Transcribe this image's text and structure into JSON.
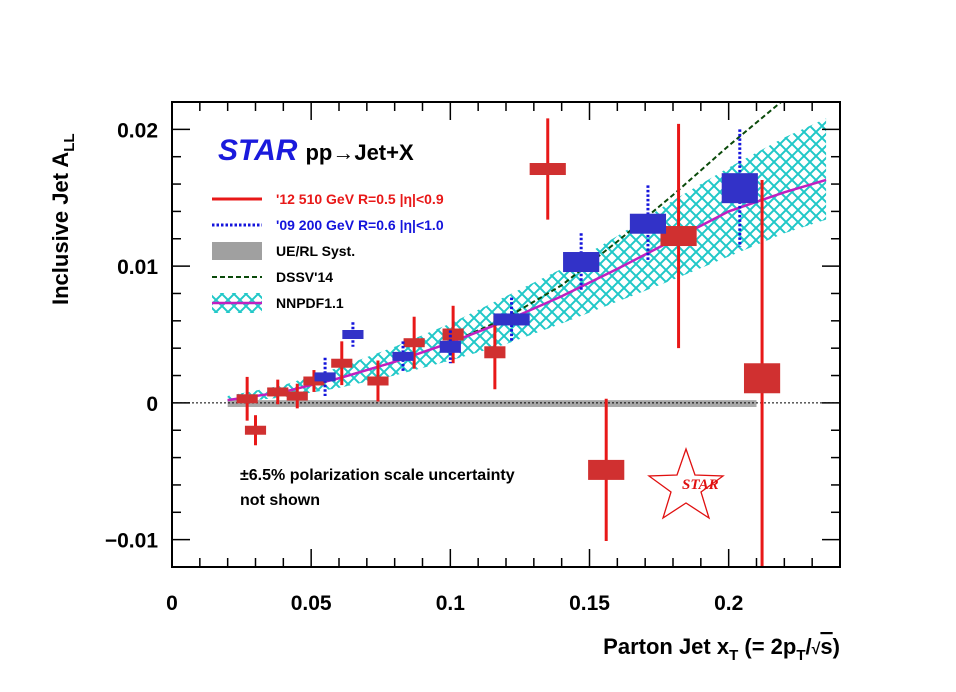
{
  "chart_data": {
    "type": "scatter",
    "title_star": "STAR",
    "title_process": "pp→Jet+X",
    "xlabel": "Parton Jet x",
    "xlabel_sub": "T",
    "xlabel_expr_open": " (= 2p",
    "xlabel_expr_sub": "T",
    "xlabel_expr_slash": "/",
    "xlabel_expr_root": "√",
    "xlabel_expr_s": "s",
    "xlabel_expr_close": ")",
    "ylabel": "Inclusive Jet A",
    "ylabel_sub": "LL",
    "xlim": [
      0,
      0.24
    ],
    "ylim": [
      -0.012,
      0.022
    ],
    "x_ticks": [
      {
        "value": 0,
        "label": "0"
      },
      {
        "value": 0.05,
        "label": "0.05"
      },
      {
        "value": 0.1,
        "label": "0.1"
      },
      {
        "value": 0.15,
        "label": "0.15"
      },
      {
        "value": 0.2,
        "label": "0.2"
      }
    ],
    "y_ticks": [
      {
        "value": -0.01,
        "label": "−0.01"
      },
      {
        "value": 0,
        "label": "0"
      },
      {
        "value": 0.01,
        "label": "0.01"
      },
      {
        "value": 0.02,
        "label": "0.02"
      }
    ],
    "legend": [
      {
        "label": "'12 510 GeV R=0.5  |η|<0.9",
        "color": "#e81818",
        "style": "solid"
      },
      {
        "label": "'09 200 GeV R=0.6  |η|<1.0",
        "color": "#1414dc",
        "style": "dotted"
      },
      {
        "label": "UE/RL Syst.",
        "color": "#a0a0a0",
        "style": "box"
      },
      {
        "label": "DSSV'14",
        "color": "#0a4a0a",
        "style": "dashed"
      },
      {
        "label": "NNPDF1.1",
        "color": "#c020c0",
        "style": "band"
      }
    ],
    "series": [
      {
        "name": "'12 510 GeV R=0.5  |η|<0.9",
        "color": "#e81818",
        "box_color": "#d03030",
        "points": [
          {
            "x": 0.027,
            "y": 0.0003,
            "err": 0.0016
          },
          {
            "x": 0.03,
            "y": -0.002,
            "err": 0.0011
          },
          {
            "x": 0.038,
            "y": 0.0008,
            "err": 0.0009
          },
          {
            "x": 0.045,
            "y": 0.0005,
            "err": 0.0009
          },
          {
            "x": 0.051,
            "y": 0.0016,
            "err": 0.0008
          },
          {
            "x": 0.061,
            "y": 0.0029,
            "err": 0.0016
          },
          {
            "x": 0.074,
            "y": 0.0016,
            "err": 0.0015
          },
          {
            "x": 0.087,
            "y": 0.0044,
            "err": 0.0019
          },
          {
            "x": 0.101,
            "y": 0.005,
            "err": 0.0021
          },
          {
            "x": 0.116,
            "y": 0.0037,
            "err": 0.0027
          },
          {
            "x": 0.135,
            "y": 0.0171,
            "err": 0.0037
          },
          {
            "x": 0.156,
            "y": -0.0049,
            "err": 0.0052
          },
          {
            "x": 0.182,
            "y": 0.0122,
            "err": 0.0082
          },
          {
            "x": 0.212,
            "y": 0.0018,
            "err": 0.0145
          }
        ]
      },
      {
        "name": "'09 200 GeV R=0.6  |η|<1.0",
        "color": "#1414dc",
        "box_color": "#3232c8",
        "points": [
          {
            "x": 0.055,
            "y": 0.0019,
            "err": 0.0014
          },
          {
            "x": 0.065,
            "y": 0.005,
            "err": 0.0009
          },
          {
            "x": 0.083,
            "y": 0.0034,
            "err": 0.0011
          },
          {
            "x": 0.1,
            "y": 0.0041,
            "err": 0.0012
          },
          {
            "x": 0.122,
            "y": 0.0061,
            "err": 0.0016
          },
          {
            "x": 0.147,
            "y": 0.0103,
            "err": 0.0021
          },
          {
            "x": 0.171,
            "y": 0.0131,
            "err": 0.0028
          },
          {
            "x": 0.204,
            "y": 0.0157,
            "err": 0.0043
          }
        ]
      }
    ],
    "ue_rl_syst": {
      "x_start": 0.02,
      "x_end": 0.21,
      "y_low": -0.0003,
      "y_high": 0.0002
    },
    "dssv14": {
      "x": [
        0.02,
        0.04,
        0.06,
        0.08,
        0.1,
        0.12,
        0.14,
        0.16,
        0.18,
        0.2,
        0.22,
        0.23
      ],
      "y": [
        0.0002,
        0.0008,
        0.0018,
        0.003,
        0.0044,
        0.0062,
        0.0086,
        0.0118,
        0.0152,
        0.0188,
        0.0222,
        0.024
      ]
    },
    "nnpdf11": {
      "x": [
        0.02,
        0.04,
        0.06,
        0.08,
        0.1,
        0.12,
        0.14,
        0.16,
        0.18,
        0.2,
        0.22,
        0.235
      ],
      "y": [
        0.0002,
        0.0008,
        0.0018,
        0.003,
        0.0044,
        0.006,
        0.0078,
        0.0098,
        0.0119,
        0.014,
        0.0154,
        0.0163
      ],
      "band_low": [
        0.0,
        0.0004,
        0.0011,
        0.002,
        0.0031,
        0.0043,
        0.0058,
        0.0074,
        0.009,
        0.0107,
        0.0124,
        0.0134
      ],
      "band_high": [
        0.0005,
        0.0013,
        0.0026,
        0.0041,
        0.0058,
        0.0078,
        0.0098,
        0.0122,
        0.0148,
        0.0172,
        0.0194,
        0.0208
      ]
    },
    "annotation_line1": "±6.5% polarization scale uncertainty",
    "annotation_line2": "not shown",
    "logo_text": "STAR",
    "zero_line": true
  }
}
